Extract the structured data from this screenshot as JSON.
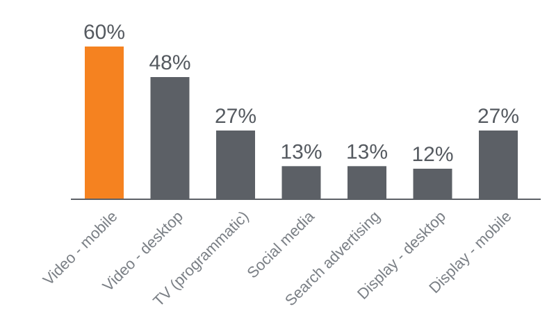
{
  "chart_data": {
    "type": "bar",
    "categories": [
      "Video - mobile",
      "Video - desktop",
      "TV (programmatic)",
      "Social media",
      "Search advertising",
      "Display - desktop",
      "Display - mobile"
    ],
    "values": [
      60,
      48,
      27,
      13,
      13,
      12,
      27
    ],
    "value_labels": [
      "60%",
      "48%",
      "27%",
      "13%",
      "13%",
      "12%",
      "27%"
    ],
    "highlight_index": 0,
    "colors": {
      "highlight": "#f58220",
      "bar": "#5c6066",
      "axis": "#5c6066",
      "value_text": "#555a60",
      "category_text": "#7a7f85"
    },
    "ylim": [
      0,
      60
    ],
    "grid": false,
    "legend": "none",
    "title": "",
    "xlabel": "",
    "ylabel": ""
  }
}
